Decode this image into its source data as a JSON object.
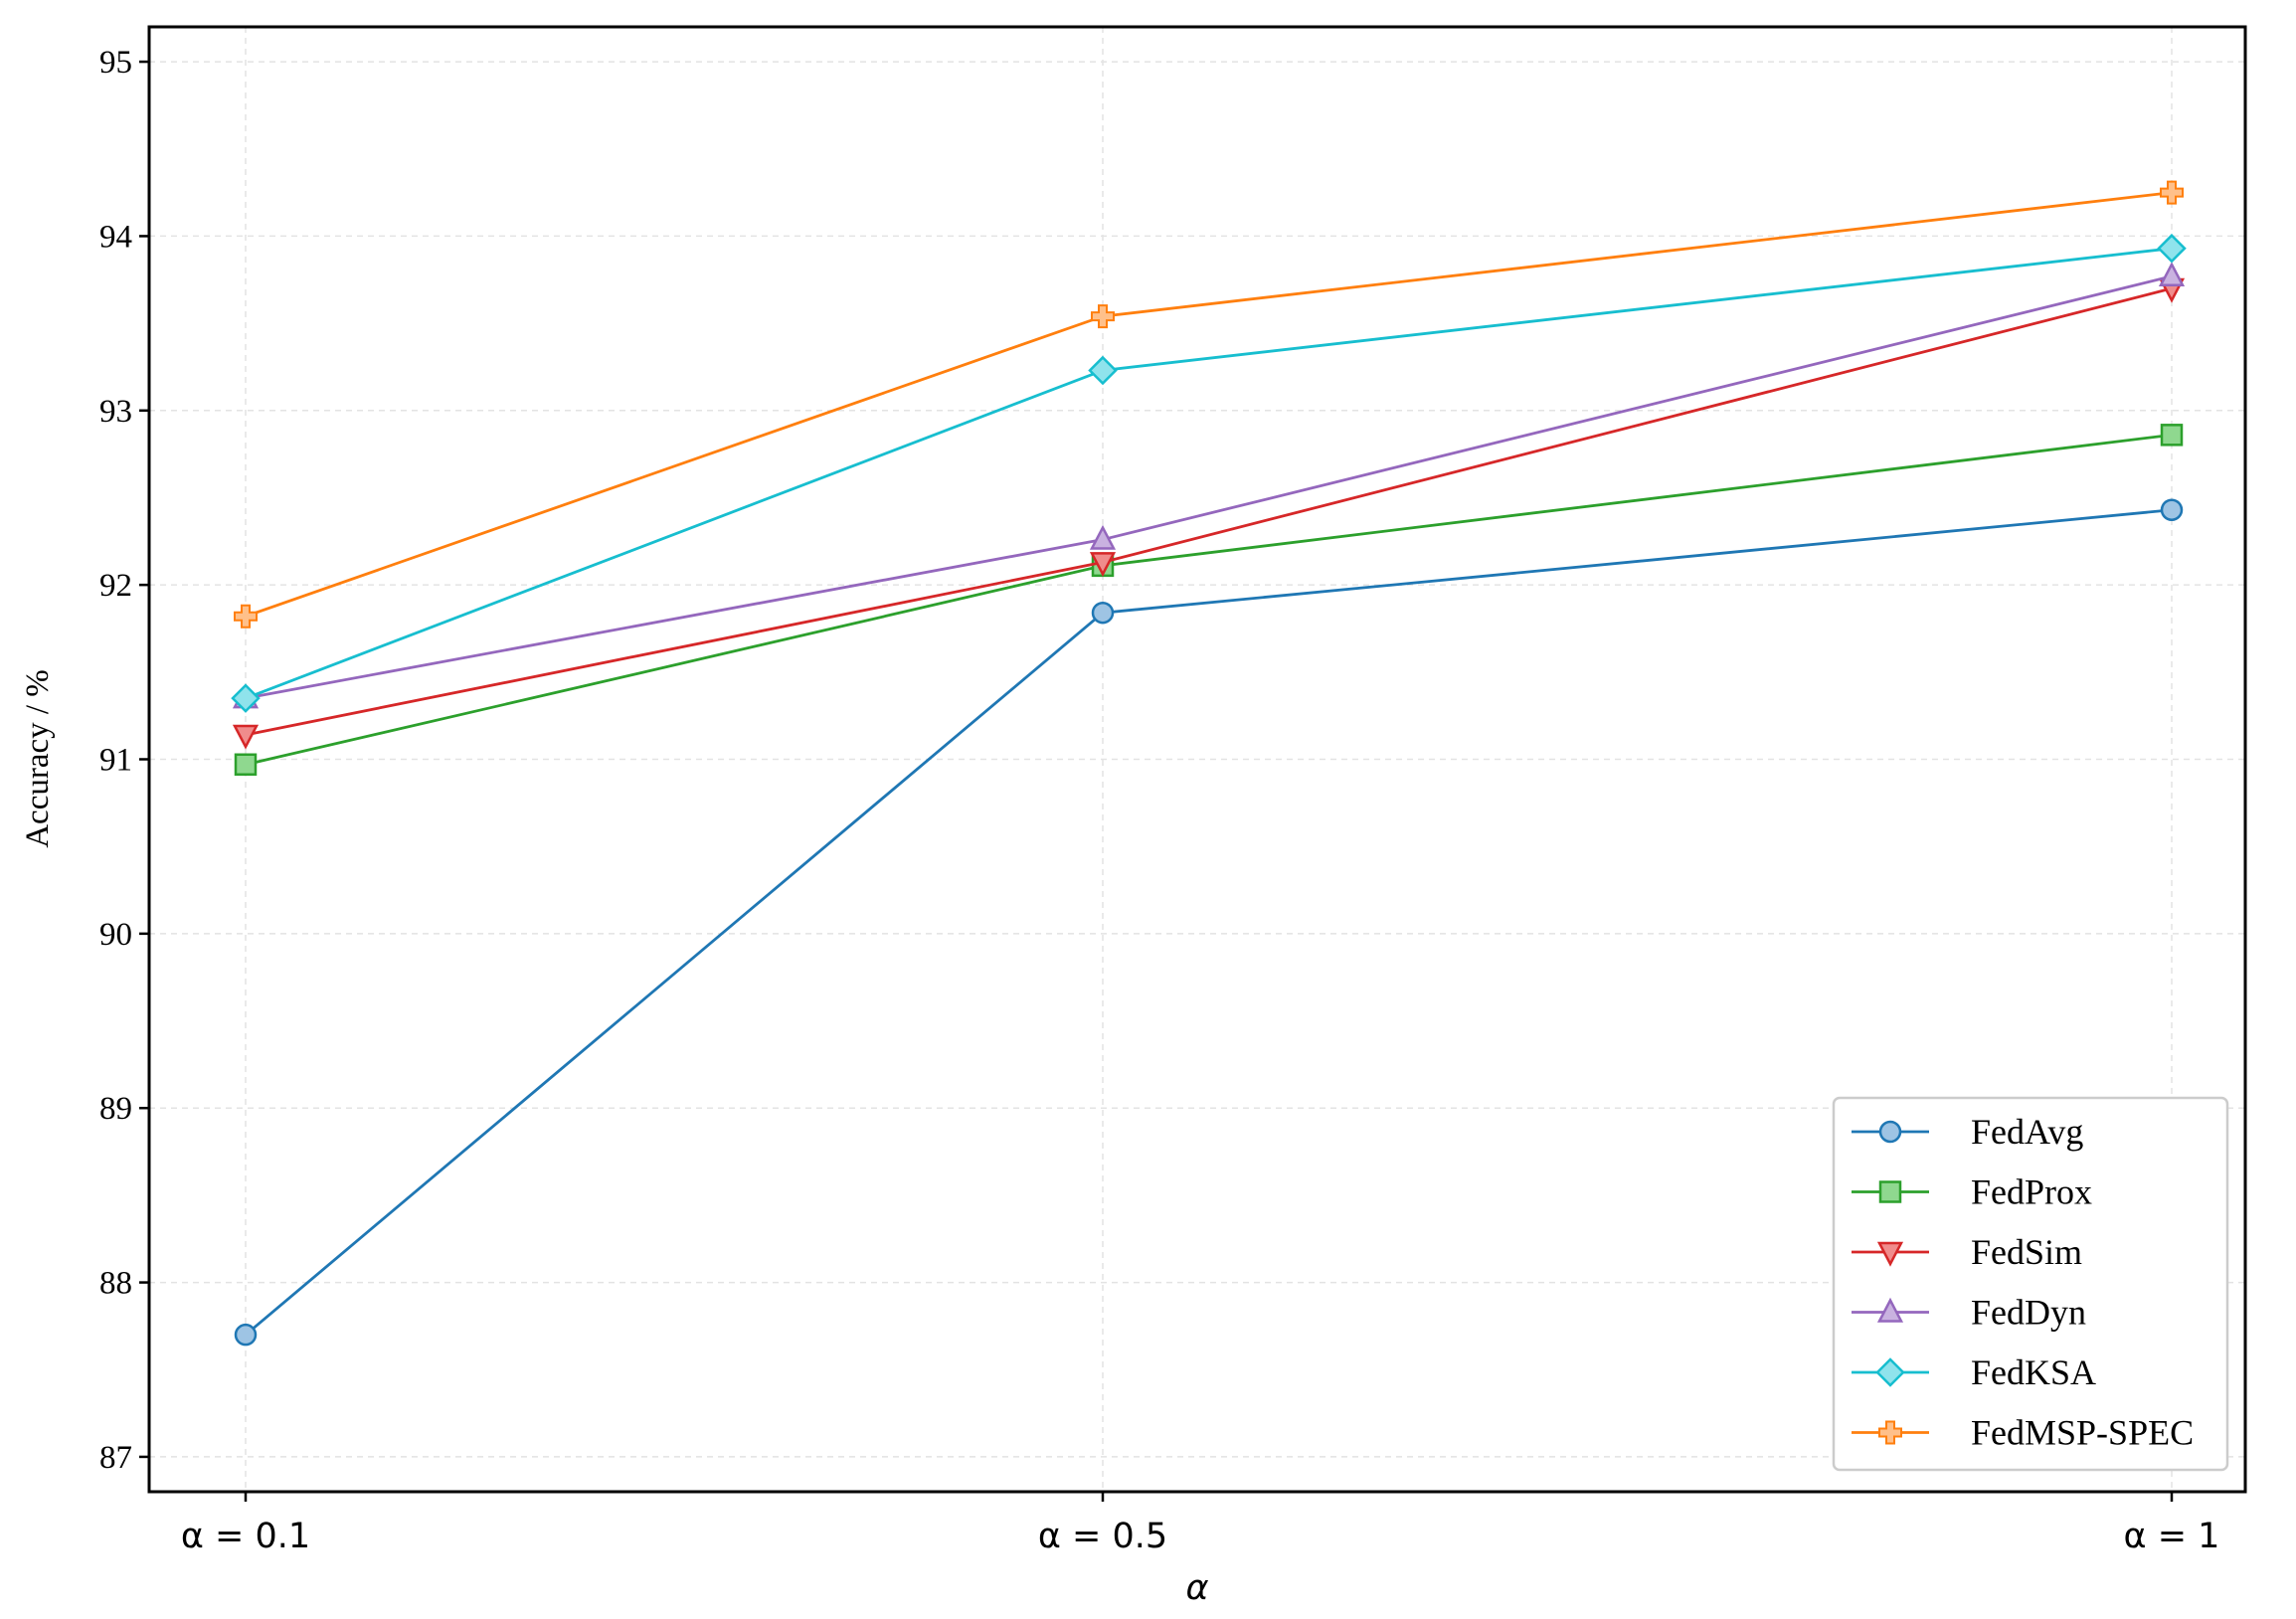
{
  "chart_data": {
    "type": "line",
    "xlabel": "α",
    "ylabel": "Accuracy / %",
    "categories": [
      "α = 0.1",
      "α = 0.5",
      "α = 1"
    ],
    "x": [
      0.1,
      0.5,
      1
    ],
    "ylim": [
      86.8,
      95.2
    ],
    "yticks": [
      87,
      88,
      89,
      90,
      91,
      92,
      93,
      94,
      95
    ],
    "grid": true,
    "legend_position": "bottom-right",
    "series": [
      {
        "name": "FedAvg",
        "values": [
          87.7,
          91.84,
          92.43
        ],
        "color": "#1f77b4",
        "fill": "#9ec4e4",
        "marker": "circle"
      },
      {
        "name": "FedProx",
        "values": [
          90.97,
          92.11,
          92.86
        ],
        "color": "#2ca02c",
        "fill": "#8fd88f",
        "marker": "square"
      },
      {
        "name": "FedSim",
        "values": [
          91.14,
          92.13,
          93.7
        ],
        "color": "#d62728",
        "fill": "#f08c8c",
        "marker": "triangle-down"
      },
      {
        "name": "FedDyn",
        "values": [
          91.35,
          92.26,
          93.77
        ],
        "color": "#9467bd",
        "fill": "#c9b2e0",
        "marker": "triangle-up"
      },
      {
        "name": "FedKSA",
        "values": [
          91.35,
          93.23,
          93.93
        ],
        "color": "#17becf",
        "fill": "#8fe3ec",
        "marker": "diamond"
      },
      {
        "name": "FedMSP-SPEC",
        "values": [
          91.82,
          93.54,
          94.25
        ],
        "color": "#ff7f0e",
        "fill": "#ffc08a",
        "marker": "plus"
      }
    ]
  }
}
